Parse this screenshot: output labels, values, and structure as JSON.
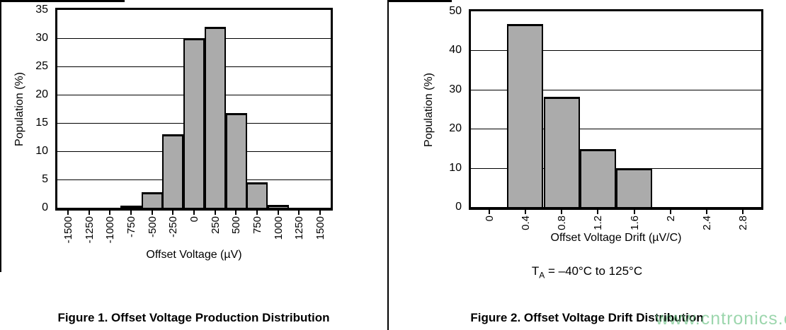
{
  "page": {
    "watermark": "www.cntronics.com"
  },
  "figure1": {
    "caption": "Figure 1. Offset Voltage Production Distribution"
  },
  "figure2": {
    "caption": "Figure 2. Offset Voltage Drift Distribution",
    "condition": {
      "prefix": "T",
      "sub": "A",
      "suffix": " = –40°C to 125°C"
    }
  },
  "chart_data": [
    {
      "type": "bar",
      "title": "Figure 1. Offset Voltage Production Distribution",
      "categories": [
        "-1500",
        "-1250",
        "-1000",
        "-750",
        "-500",
        "-250",
        "0",
        "250",
        "500",
        "750",
        "1000",
        "1250",
        "1500"
      ],
      "values": [
        0,
        0,
        0,
        0.3,
        2.8,
        13,
        30,
        32,
        16.8,
        4.5,
        0.5,
        0,
        0
      ],
      "xlabel": "Offset Voltage (µV)",
      "ylabel": "Population (%)",
      "ylim": [
        0,
        35
      ],
      "ytick_step": 5,
      "grid": true,
      "legend": "none",
      "bar_color": "#ababab"
    },
    {
      "type": "bar",
      "title": "Figure 2. Offset Voltage Drift Distribution",
      "categories": [
        "0",
        "0.4",
        "0.8",
        "1.2",
        "1.6",
        "2",
        "2.4",
        "2.8"
      ],
      "values": [
        0,
        46.8,
        28.2,
        14.8,
        10,
        0,
        0,
        0
      ],
      "xlabel": "Offset Voltage Drift (µV/C)",
      "ylabel": "Population (%)",
      "ylim": [
        0,
        50
      ],
      "ytick_step": 10,
      "grid": true,
      "legend": "none",
      "bar_color": "#ababab",
      "annotation": "TA = –40°C to 125°C"
    }
  ]
}
